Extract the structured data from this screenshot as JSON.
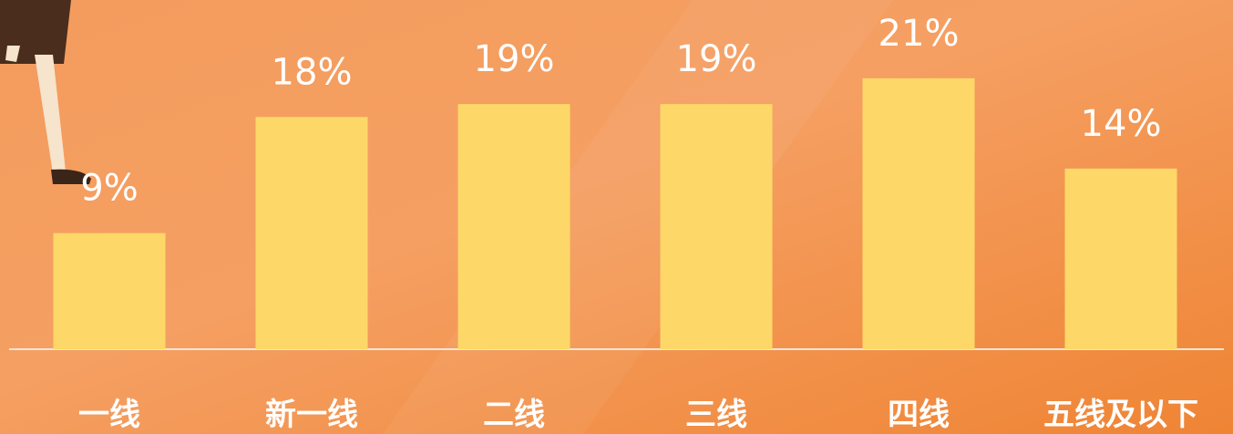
{
  "chart_data": {
    "type": "bar",
    "categories": [
      "一线",
      "新一线",
      "二线",
      "三线",
      "四线",
      "五线及以下"
    ],
    "values": [
      9,
      18,
      19,
      19,
      21,
      14
    ],
    "value_labels": [
      "9%",
      "18%",
      "19%",
      "19%",
      "21%",
      "14%"
    ],
    "color": "#fdd868"
  }
}
